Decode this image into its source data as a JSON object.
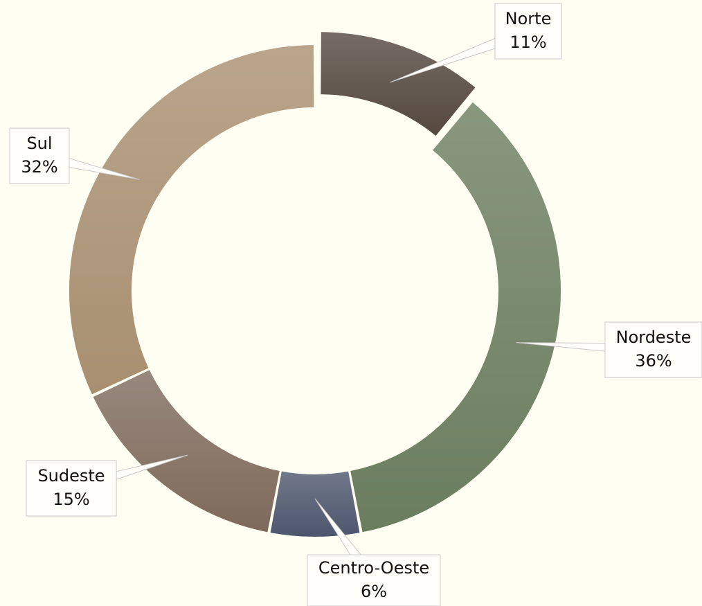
{
  "chart_data": {
    "type": "donut",
    "categories": [
      "Norte",
      "Nordeste",
      "Centro-Oeste",
      "Sudeste",
      "Sul"
    ],
    "values": [
      11,
      36,
      6,
      15,
      32
    ],
    "value_labels": [
      "11%",
      "36%",
      "6%",
      "15%",
      "32%"
    ],
    "colors": [
      "#54483f",
      "#6b7d5f",
      "#4d566c",
      "#7e6a5c",
      "#a88f70"
    ],
    "exploded": [
      "Norte"
    ]
  }
}
